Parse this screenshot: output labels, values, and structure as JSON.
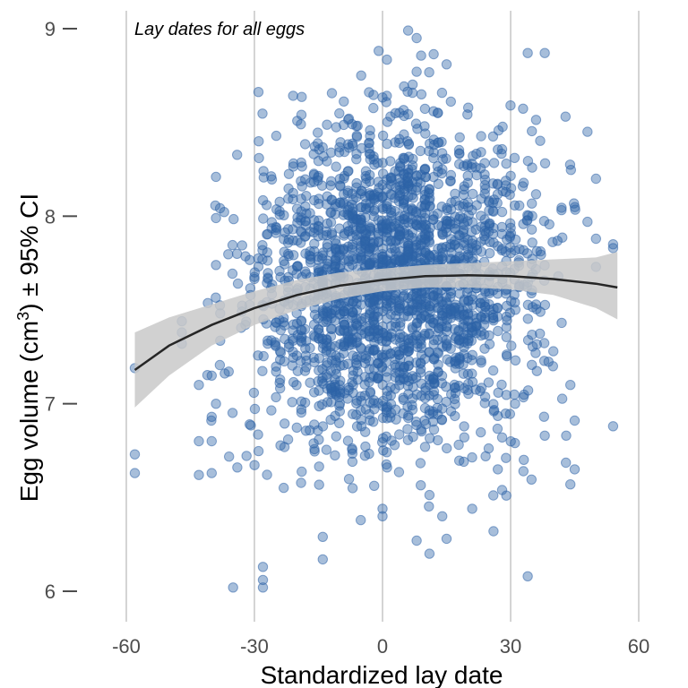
{
  "chart_data": {
    "type": "scatter",
    "annotation": "Lay dates for all eggs",
    "xlabel": "Standardized lay date",
    "ylabel_prefix": "Egg volume (cm",
    "ylabel_sup": "3",
    "ylabel_suffix": ") ± 95% CI",
    "xlim": [
      -62,
      64
    ],
    "ylim": [
      5.85,
      9.12
    ],
    "xticks": [
      -60,
      -30,
      0,
      30,
      60
    ],
    "xtick_labels": [
      "-60",
      "-30",
      "0",
      "30",
      "60"
    ],
    "yticks": [
      6,
      7,
      8,
      9
    ],
    "ytick_labels": [
      "6",
      "7",
      "8",
      "9"
    ],
    "grid": "vertical lines at x ticks",
    "colors": {
      "points": "#2e63a8",
      "fit_line": "#262626",
      "ci_band": "#c9c9c9",
      "grid": "#aaaaaa"
    },
    "fit": {
      "x": [
        -58,
        -50,
        -40,
        -30,
        -20,
        -10,
        0,
        10,
        20,
        30,
        40,
        50,
        55
      ],
      "y": [
        7.18,
        7.31,
        7.42,
        7.51,
        7.58,
        7.63,
        7.66,
        7.68,
        7.685,
        7.68,
        7.665,
        7.64,
        7.62
      ],
      "lower": [
        6.98,
        7.15,
        7.31,
        7.42,
        7.5,
        7.56,
        7.6,
        7.62,
        7.62,
        7.61,
        7.58,
        7.51,
        7.45
      ],
      "upper": [
        7.38,
        7.46,
        7.53,
        7.6,
        7.66,
        7.7,
        7.72,
        7.74,
        7.75,
        7.76,
        7.77,
        7.78,
        7.81
      ]
    },
    "points": {
      "n_approx": 2200,
      "note_cloud": "dense central cloud roughly x -40..45, y 6.3..8.9",
      "outliers": [
        [
          -58,
          7.19
        ],
        [
          -58,
          6.73
        ],
        [
          -58,
          6.63
        ],
        [
          -47,
          7.44
        ],
        [
          -47,
          7.38
        ],
        [
          -47,
          7.32
        ],
        [
          -43,
          7.1
        ],
        [
          -43,
          6.8
        ],
        [
          -43,
          6.62
        ],
        [
          -40,
          7.15
        ],
        [
          -40,
          6.93
        ],
        [
          -40,
          6.8
        ],
        [
          -40,
          6.63
        ],
        [
          -39,
          7.0
        ],
        [
          -39,
          7.74
        ],
        [
          -39,
          7.99
        ],
        [
          -39,
          8.21
        ],
        [
          -35,
          6.02
        ],
        [
          -34,
          6.66
        ],
        [
          -28,
          6.13
        ],
        [
          -28,
          6.06
        ],
        [
          -28,
          6.02
        ],
        [
          -14,
          6.17
        ],
        [
          -14,
          6.29
        ],
        [
          -7,
          6.55
        ],
        [
          0,
          6.4
        ],
        [
          0,
          6.44
        ],
        [
          6,
          8.99
        ],
        [
          8,
          8.95
        ],
        [
          8,
          8.77
        ],
        [
          8,
          6.27
        ],
        [
          11,
          6.2
        ],
        [
          14,
          6.4
        ],
        [
          15,
          8.81
        ],
        [
          15,
          6.28
        ],
        [
          21,
          6.44
        ],
        [
          26,
          6.32
        ],
        [
          27,
          6.65
        ],
        [
          28,
          6.54
        ],
        [
          28,
          6.82
        ],
        [
          29,
          6.51
        ],
        [
          31,
          6.79
        ],
        [
          33,
          6.64
        ],
        [
          34,
          6.08
        ],
        [
          34,
          8.87
        ],
        [
          38,
          8.87
        ],
        [
          38,
          6.83
        ],
        [
          40,
          7.28
        ],
        [
          43,
          6.83
        ],
        [
          44,
          6.57
        ],
        [
          44,
          7.1
        ],
        [
          45,
          6.65
        ],
        [
          45,
          6.91
        ],
        [
          48,
          8.45
        ],
        [
          48,
          7.97
        ],
        [
          50,
          8.2
        ],
        [
          50,
          7.88
        ],
        [
          50,
          7.73
        ],
        [
          54,
          6.88
        ],
        [
          54,
          7.83
        ],
        [
          54,
          7.85
        ]
      ]
    }
  }
}
